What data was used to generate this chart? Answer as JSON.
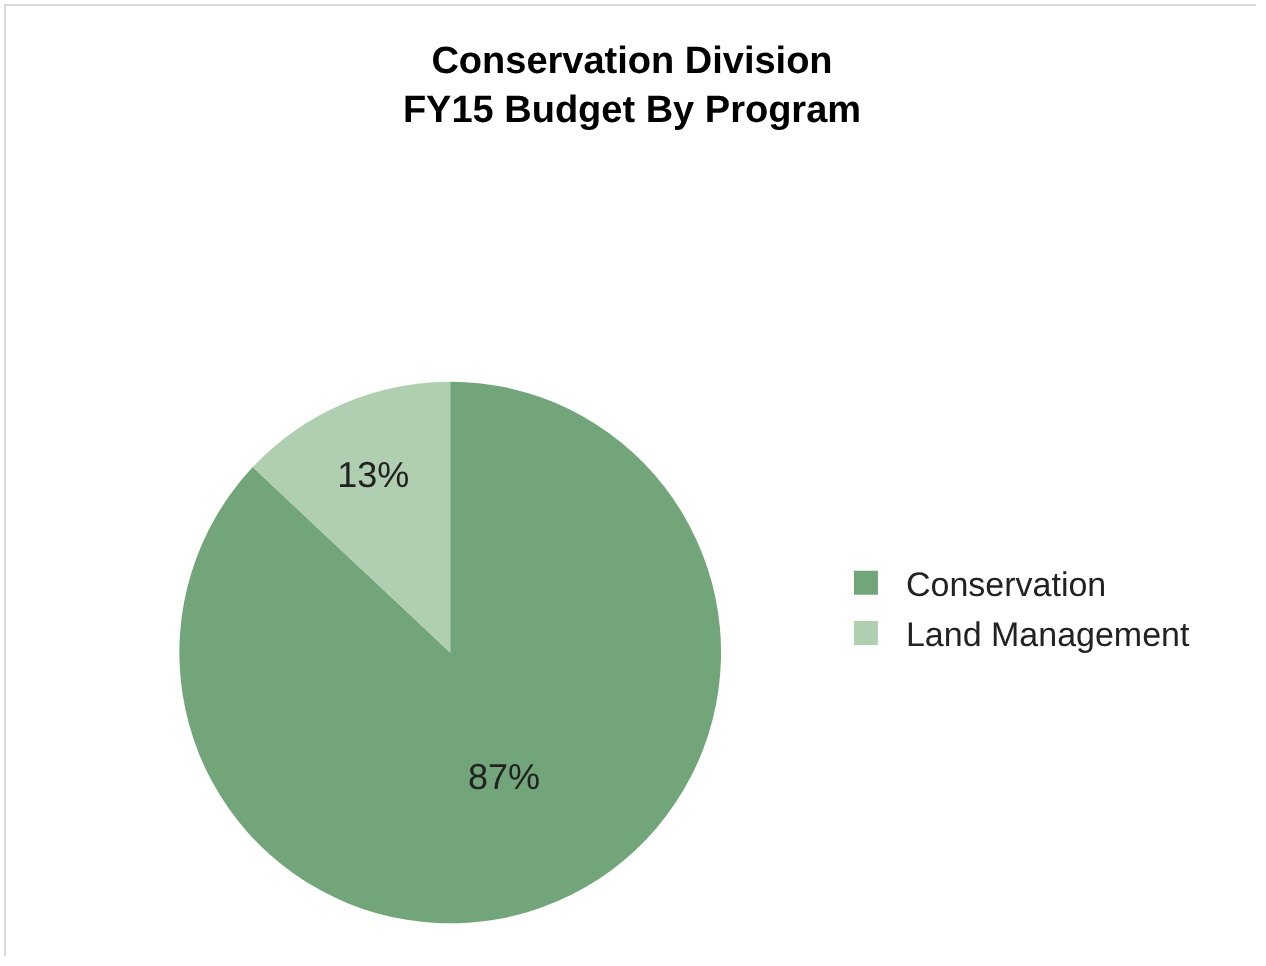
{
  "chart_data": {
    "type": "pie",
    "title": "Conservation Division\nFY15 Budget By Program",
    "categories": [
      "Conservation",
      "Land Management"
    ],
    "values": [
      87,
      13
    ],
    "colors": [
      "#72a57a",
      "#b0cfb0"
    ],
    "value_labels": [
      "87%",
      "13%"
    ],
    "legend": "right"
  }
}
